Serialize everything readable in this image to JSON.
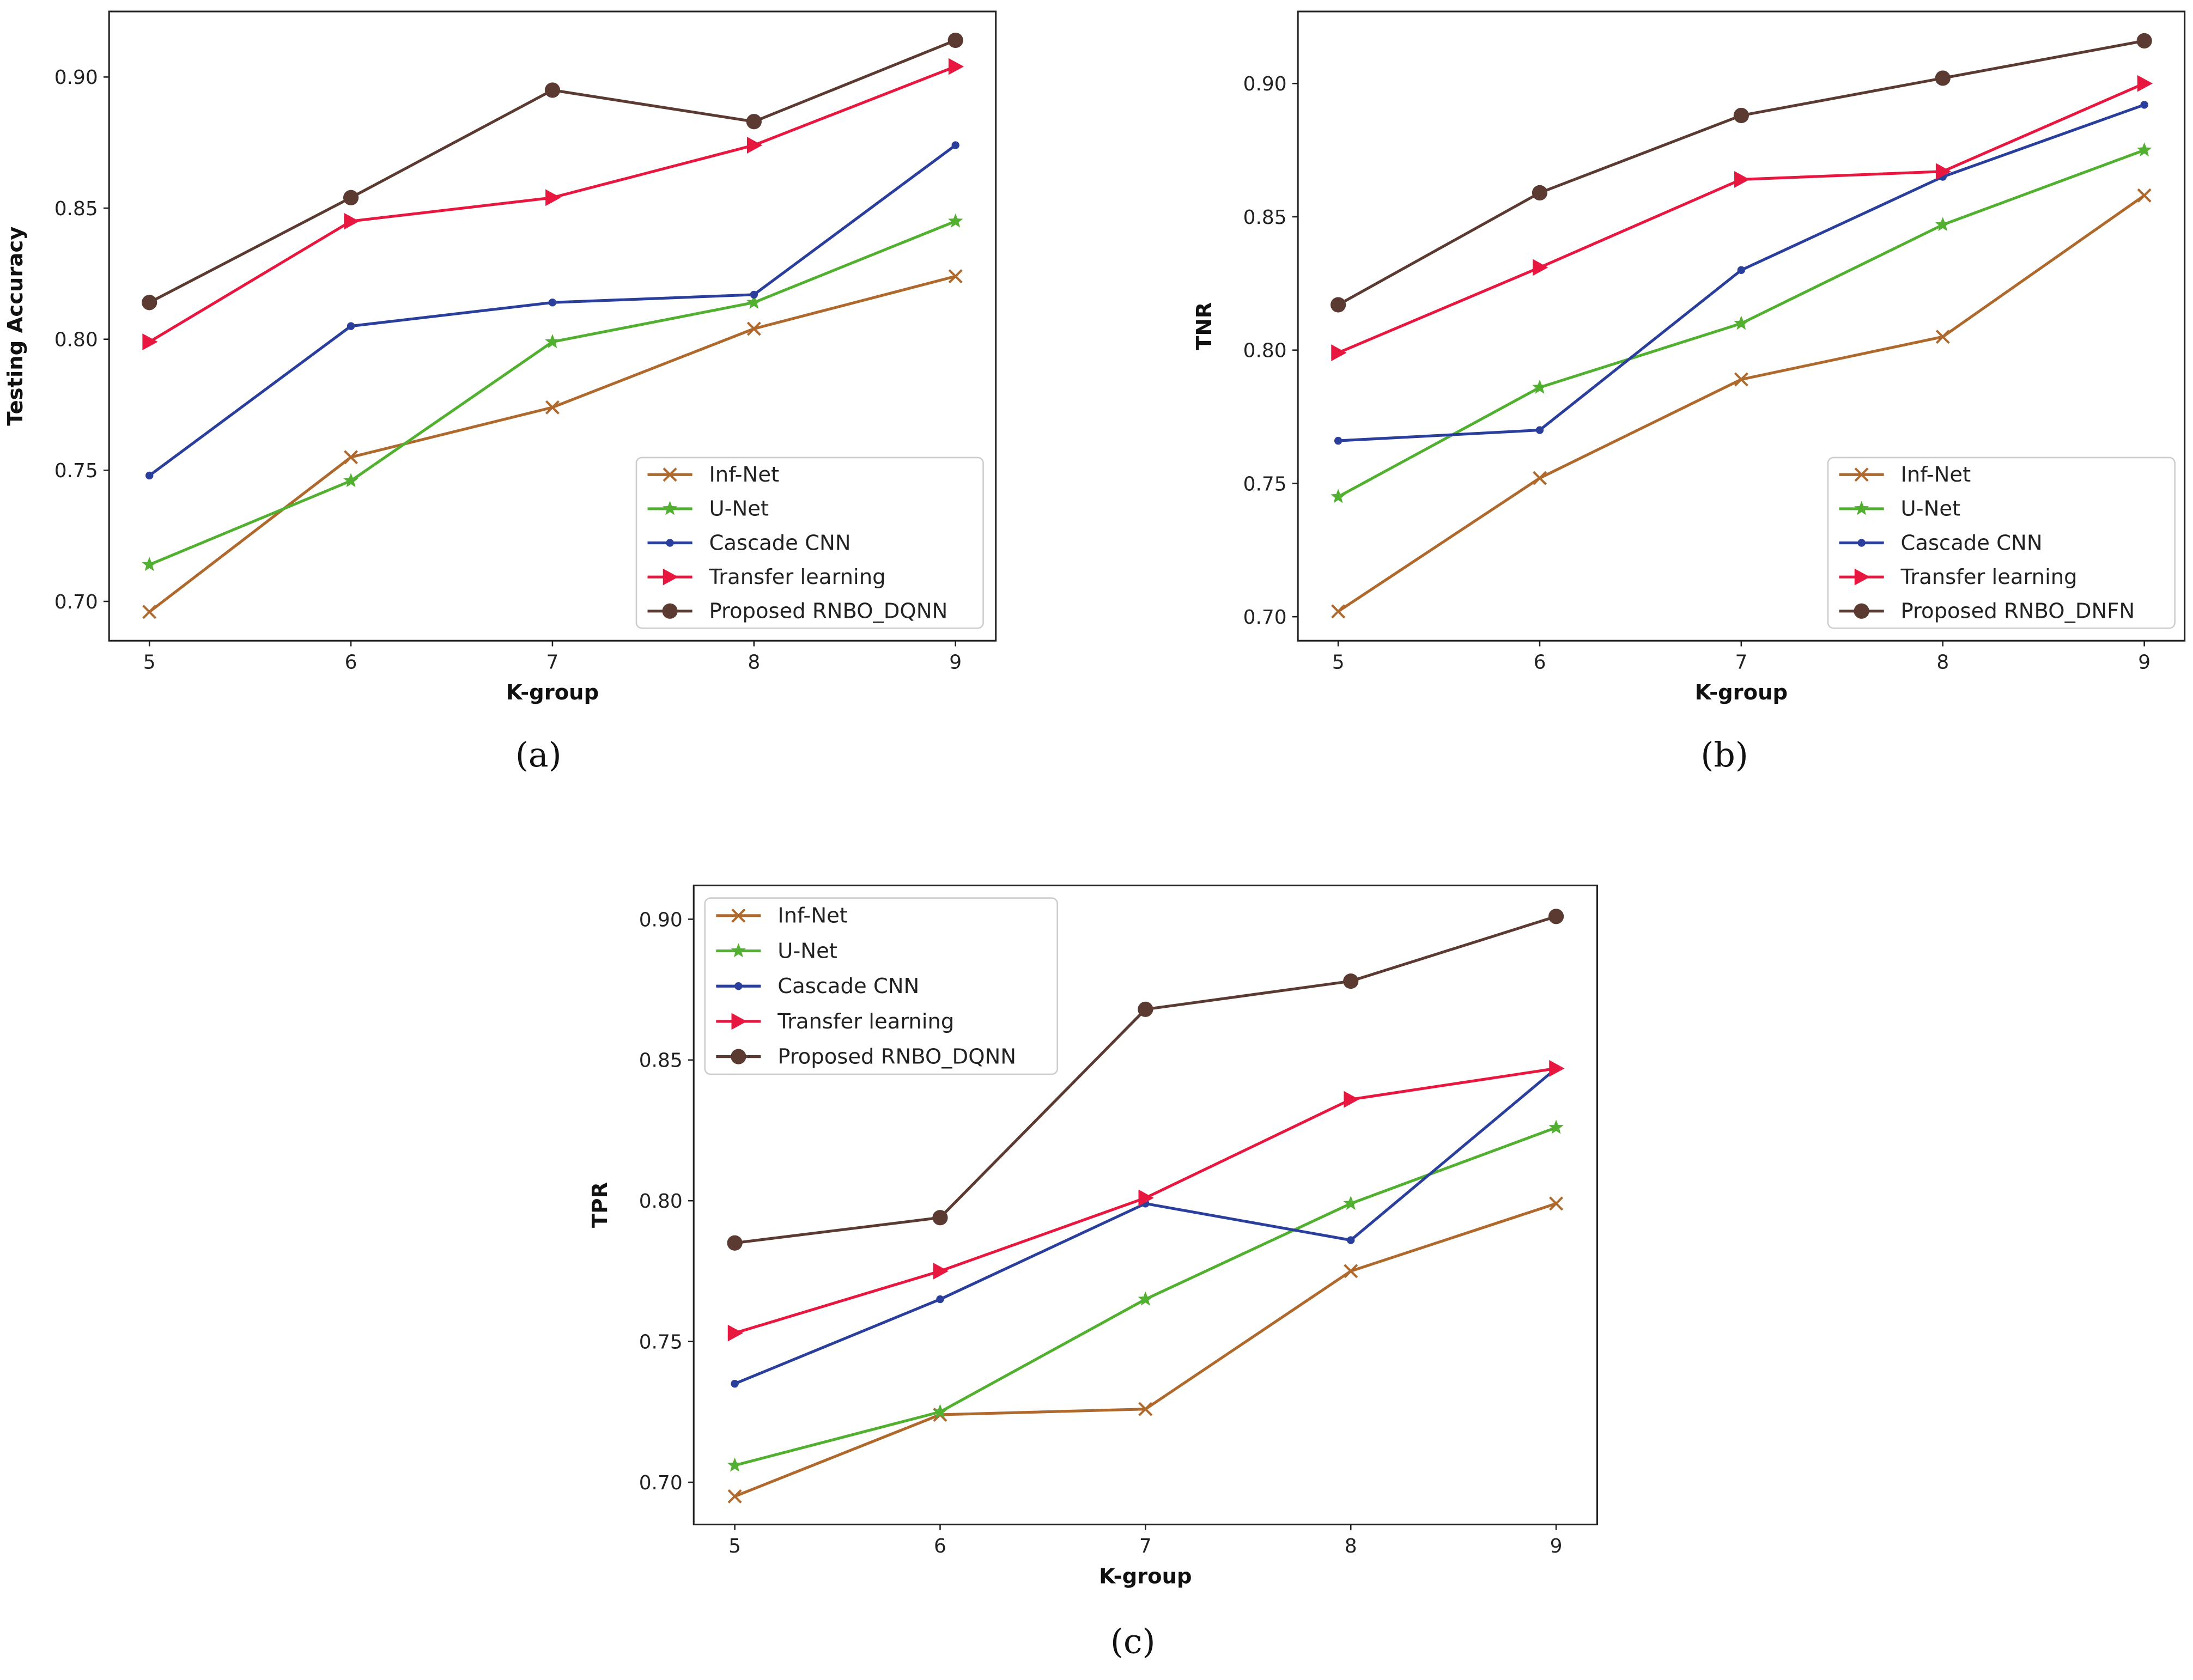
{
  "series_styles": [
    {
      "name": "Inf-Net",
      "color": "#b0692c",
      "marker": "x"
    },
    {
      "name": "U-Net",
      "color": "#52b030",
      "marker": "star"
    },
    {
      "name": "Cascade CNN",
      "color": "#2a3e9c",
      "marker": "dot"
    },
    {
      "name": "Transfer learning",
      "color": "#e8173f",
      "marker": "triangle-right"
    },
    {
      "name": "Proposed",
      "color": "#5b3a31",
      "marker": "circle"
    }
  ],
  "chart_data": [
    {
      "type": "line",
      "caption": "(a)",
      "xlabel": "K-group",
      "ylabel": "Testing Accuracy",
      "x": [
        5,
        6,
        7,
        8,
        9
      ],
      "xticks": [
        "5",
        "6",
        "7",
        "8",
        "9"
      ],
      "yticks": [
        0.7,
        0.75,
        0.8,
        0.85,
        0.9
      ],
      "ytick_labels": [
        "0.70",
        "0.75",
        "0.80",
        "0.85",
        "0.90"
      ],
      "xlim": [
        4.8,
        9.2
      ],
      "ylim": [
        0.685,
        0.925
      ],
      "legend": "lower-right",
      "series": [
        {
          "name": "Inf-Net",
          "values": [
            0.696,
            0.755,
            0.774,
            0.804,
            0.824
          ]
        },
        {
          "name": "U-Net",
          "values": [
            0.714,
            0.746,
            0.799,
            0.814,
            0.845
          ]
        },
        {
          "name": "Cascade CNN",
          "values": [
            0.748,
            0.805,
            0.814,
            0.817,
            0.874
          ]
        },
        {
          "name": "Transfer learning",
          "values": [
            0.799,
            0.845,
            0.854,
            0.874,
            0.904
          ]
        },
        {
          "name": "Proposed RNBO_DQNN",
          "values": [
            0.814,
            0.854,
            0.895,
            0.883,
            0.914
          ]
        }
      ]
    },
    {
      "type": "line",
      "caption": "(b)",
      "xlabel": "K-group",
      "ylabel": "TNR",
      "x": [
        5,
        6,
        7,
        8,
        9
      ],
      "xticks": [
        "5",
        "6",
        "7",
        "8",
        "9"
      ],
      "yticks": [
        0.7,
        0.75,
        0.8,
        0.85,
        0.9
      ],
      "ytick_labels": [
        "0.70",
        "0.75",
        "0.80",
        "0.85",
        "0.90"
      ],
      "xlim": [
        4.8,
        9.2
      ],
      "ylim": [
        0.691,
        0.927
      ],
      "legend": "lower-right",
      "series": [
        {
          "name": "Inf-Net",
          "values": [
            0.702,
            0.752,
            0.789,
            0.805,
            0.858
          ]
        },
        {
          "name": "U-Net",
          "values": [
            0.745,
            0.786,
            0.81,
            0.847,
            0.875
          ]
        },
        {
          "name": "Cascade CNN",
          "values": [
            0.766,
            0.77,
            0.83,
            0.865,
            0.892
          ]
        },
        {
          "name": "Transfer learning",
          "values": [
            0.799,
            0.831,
            0.864,
            0.867,
            0.9
          ]
        },
        {
          "name": "Proposed RNBO_DNFN",
          "values": [
            0.817,
            0.859,
            0.888,
            0.902,
            0.916
          ]
        }
      ]
    },
    {
      "type": "line",
      "caption": "(c)",
      "xlabel": "K-group",
      "ylabel": "TPR",
      "x": [
        5,
        6,
        7,
        8,
        9
      ],
      "xticks": [
        "5",
        "6",
        "7",
        "8",
        "9"
      ],
      "yticks": [
        0.7,
        0.75,
        0.8,
        0.85,
        0.9
      ],
      "ytick_labels": [
        "0.70",
        "0.75",
        "0.80",
        "0.85",
        "0.90"
      ],
      "xlim": [
        4.8,
        9.2
      ],
      "ylim": [
        0.685,
        0.912
      ],
      "legend": "upper-left",
      "series": [
        {
          "name": "Inf-Net",
          "values": [
            0.695,
            0.724,
            0.726,
            0.775,
            0.799
          ]
        },
        {
          "name": "U-Net",
          "values": [
            0.706,
            0.725,
            0.765,
            0.799,
            0.826
          ]
        },
        {
          "name": "Cascade CNN",
          "values": [
            0.735,
            0.765,
            0.799,
            0.786,
            0.847
          ]
        },
        {
          "name": "Transfer learning",
          "values": [
            0.753,
            0.775,
            0.801,
            0.836,
            0.847
          ]
        },
        {
          "name": "Proposed RNBO_DQNN",
          "values": [
            0.785,
            0.794,
            0.868,
            0.878,
            0.901
          ]
        }
      ]
    }
  ]
}
